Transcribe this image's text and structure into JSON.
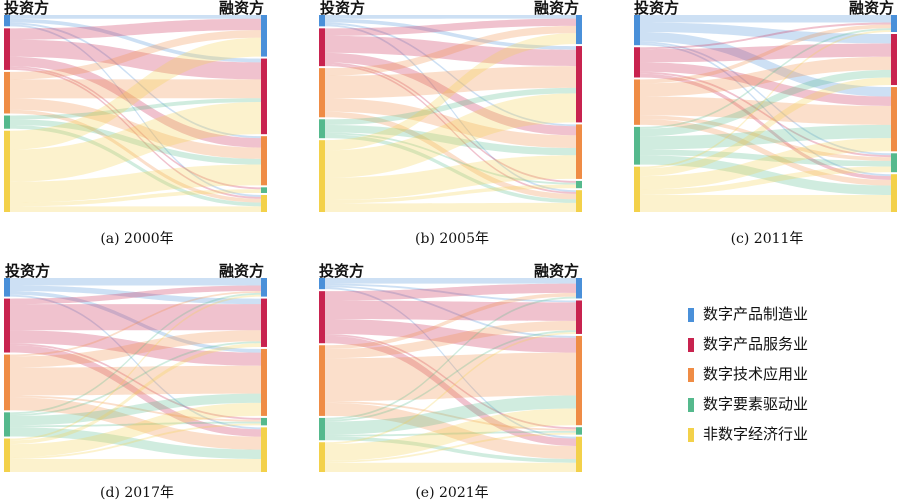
{
  "labels": {
    "investor": "投资方",
    "financer": "融资方"
  },
  "categories": [
    {
      "name": "数字产品制造业",
      "color": "#4a90d9",
      "icon": "legend-swatch-blue"
    },
    {
      "name": "数字产品服务业",
      "color": "#c8234f",
      "icon": "legend-swatch-crimson"
    },
    {
      "name": "数字技术应用业",
      "color": "#ef8c45",
      "icon": "legend-swatch-orange"
    },
    {
      "name": "数字要素驱动业",
      "color": "#55b98d",
      "icon": "legend-swatch-green"
    },
    {
      "name": "非数字经济行业",
      "color": "#f3d14a",
      "icon": "legend-swatch-yellow"
    }
  ],
  "panels": [
    {
      "caption": "(a) 2000年",
      "source": [
        0.06,
        0.22,
        0.22,
        0.07,
        0.43
      ],
      "target": [
        0.22,
        0.4,
        0.26,
        0.03,
        0.09
      ],
      "flows": [
        [
          0,
          0,
          0.02
        ],
        [
          0,
          1,
          0.02
        ],
        [
          0,
          2,
          0.01
        ],
        [
          0,
          4,
          0.01
        ],
        [
          1,
          0,
          0.06
        ],
        [
          1,
          1,
          0.09
        ],
        [
          1,
          2,
          0.05
        ],
        [
          1,
          3,
          0.01
        ],
        [
          1,
          4,
          0.01
        ],
        [
          2,
          0,
          0.04
        ],
        [
          2,
          1,
          0.1
        ],
        [
          2,
          2,
          0.06
        ],
        [
          2,
          4,
          0.02
        ],
        [
          3,
          1,
          0.02
        ],
        [
          3,
          2,
          0.03
        ],
        [
          3,
          4,
          0.02
        ],
        [
          4,
          0,
          0.1
        ],
        [
          4,
          1,
          0.17
        ],
        [
          4,
          2,
          0.11
        ],
        [
          4,
          3,
          0.02
        ],
        [
          4,
          4,
          0.03
        ]
      ]
    },
    {
      "caption": "(b) 2005年",
      "source": [
        0.06,
        0.2,
        0.26,
        0.1,
        0.38
      ],
      "target": [
        0.16,
        0.42,
        0.3,
        0.04,
        0.12
      ],
      "flows": [
        [
          0,
          0,
          0.02
        ],
        [
          0,
          1,
          0.02
        ],
        [
          0,
          2,
          0.01
        ],
        [
          0,
          4,
          0.01
        ],
        [
          1,
          0,
          0.04
        ],
        [
          1,
          1,
          0.09
        ],
        [
          1,
          2,
          0.05
        ],
        [
          1,
          3,
          0.01
        ],
        [
          1,
          4,
          0.01
        ],
        [
          2,
          0,
          0.04
        ],
        [
          2,
          1,
          0.12
        ],
        [
          2,
          2,
          0.07
        ],
        [
          2,
          4,
          0.03
        ],
        [
          3,
          1,
          0.03
        ],
        [
          3,
          2,
          0.04
        ],
        [
          3,
          3,
          0.01
        ],
        [
          3,
          4,
          0.02
        ],
        [
          4,
          0,
          0.06
        ],
        [
          4,
          1,
          0.16
        ],
        [
          4,
          2,
          0.13
        ],
        [
          4,
          3,
          0.02
        ],
        [
          4,
          4,
          0.05
        ]
      ]
    },
    {
      "caption": "(c) 2011年",
      "source": [
        0.16,
        0.16,
        0.24,
        0.2,
        0.24
      ],
      "target": [
        0.09,
        0.27,
        0.34,
        0.1,
        0.2
      ],
      "flows": [
        [
          0,
          0,
          0.04
        ],
        [
          0,
          1,
          0.05
        ],
        [
          0,
          2,
          0.05
        ],
        [
          0,
          3,
          0.01
        ],
        [
          0,
          4,
          0.01
        ],
        [
          1,
          0,
          0.01
        ],
        [
          1,
          1,
          0.07
        ],
        [
          1,
          2,
          0.05
        ],
        [
          1,
          3,
          0.01
        ],
        [
          1,
          4,
          0.02
        ],
        [
          2,
          0,
          0.02
        ],
        [
          2,
          1,
          0.07
        ],
        [
          2,
          2,
          0.1
        ],
        [
          2,
          3,
          0.02
        ],
        [
          2,
          4,
          0.03
        ],
        [
          3,
          0,
          0.01
        ],
        [
          3,
          1,
          0.04
        ],
        [
          3,
          2,
          0.07
        ],
        [
          3,
          3,
          0.03
        ],
        [
          3,
          4,
          0.05
        ],
        [
          4,
          0,
          0.01
        ],
        [
          4,
          1,
          0.04
        ],
        [
          4,
          2,
          0.07
        ],
        [
          4,
          3,
          0.03
        ],
        [
          4,
          4,
          0.09
        ]
      ]
    },
    {
      "caption": "(d) 2017年",
      "source": [
        0.1,
        0.29,
        0.3,
        0.13,
        0.18
      ],
      "target": [
        0.1,
        0.26,
        0.36,
        0.04,
        0.24
      ],
      "flows": [
        [
          0,
          0,
          0.04
        ],
        [
          0,
          1,
          0.03
        ],
        [
          0,
          2,
          0.02
        ],
        [
          0,
          4,
          0.01
        ],
        [
          1,
          0,
          0.03
        ],
        [
          1,
          1,
          0.14
        ],
        [
          1,
          2,
          0.07
        ],
        [
          1,
          3,
          0.01
        ],
        [
          1,
          4,
          0.04
        ],
        [
          2,
          0,
          0.01
        ],
        [
          2,
          1,
          0.06
        ],
        [
          2,
          2,
          0.15
        ],
        [
          2,
          3,
          0.01
        ],
        [
          2,
          4,
          0.07
        ],
        [
          3,
          0,
          0.01
        ],
        [
          3,
          1,
          0.01
        ],
        [
          3,
          2,
          0.05
        ],
        [
          3,
          3,
          0.01
        ],
        [
          3,
          4,
          0.05
        ],
        [
          4,
          0,
          0.01
        ],
        [
          4,
          1,
          0.02
        ],
        [
          4,
          2,
          0.07
        ],
        [
          4,
          3,
          0.01
        ],
        [
          4,
          4,
          0.07
        ]
      ]
    },
    {
      "caption": "(e) 2021年",
      "source": [
        0.06,
        0.28,
        0.38,
        0.12,
        0.16
      ],
      "target": [
        0.11,
        0.18,
        0.48,
        0.04,
        0.19
      ],
      "flows": [
        [
          0,
          0,
          0.03
        ],
        [
          0,
          1,
          0.01
        ],
        [
          0,
          2,
          0.01
        ],
        [
          0,
          4,
          0.01
        ],
        [
          1,
          0,
          0.05
        ],
        [
          1,
          1,
          0.1
        ],
        [
          1,
          2,
          0.08
        ],
        [
          1,
          3,
          0.01
        ],
        [
          1,
          4,
          0.04
        ],
        [
          2,
          0,
          0.02
        ],
        [
          2,
          1,
          0.05
        ],
        [
          2,
          2,
          0.23
        ],
        [
          2,
          3,
          0.01
        ],
        [
          2,
          4,
          0.07
        ],
        [
          3,
          0,
          0.01
        ],
        [
          3,
          1,
          0.01
        ],
        [
          3,
          2,
          0.07
        ],
        [
          3,
          3,
          0.01
        ],
        [
          3,
          4,
          0.02
        ],
        [
          4,
          1,
          0.01
        ],
        [
          4,
          2,
          0.09
        ],
        [
          4,
          3,
          0.01
        ],
        [
          4,
          4,
          0.05
        ]
      ]
    }
  ]
}
